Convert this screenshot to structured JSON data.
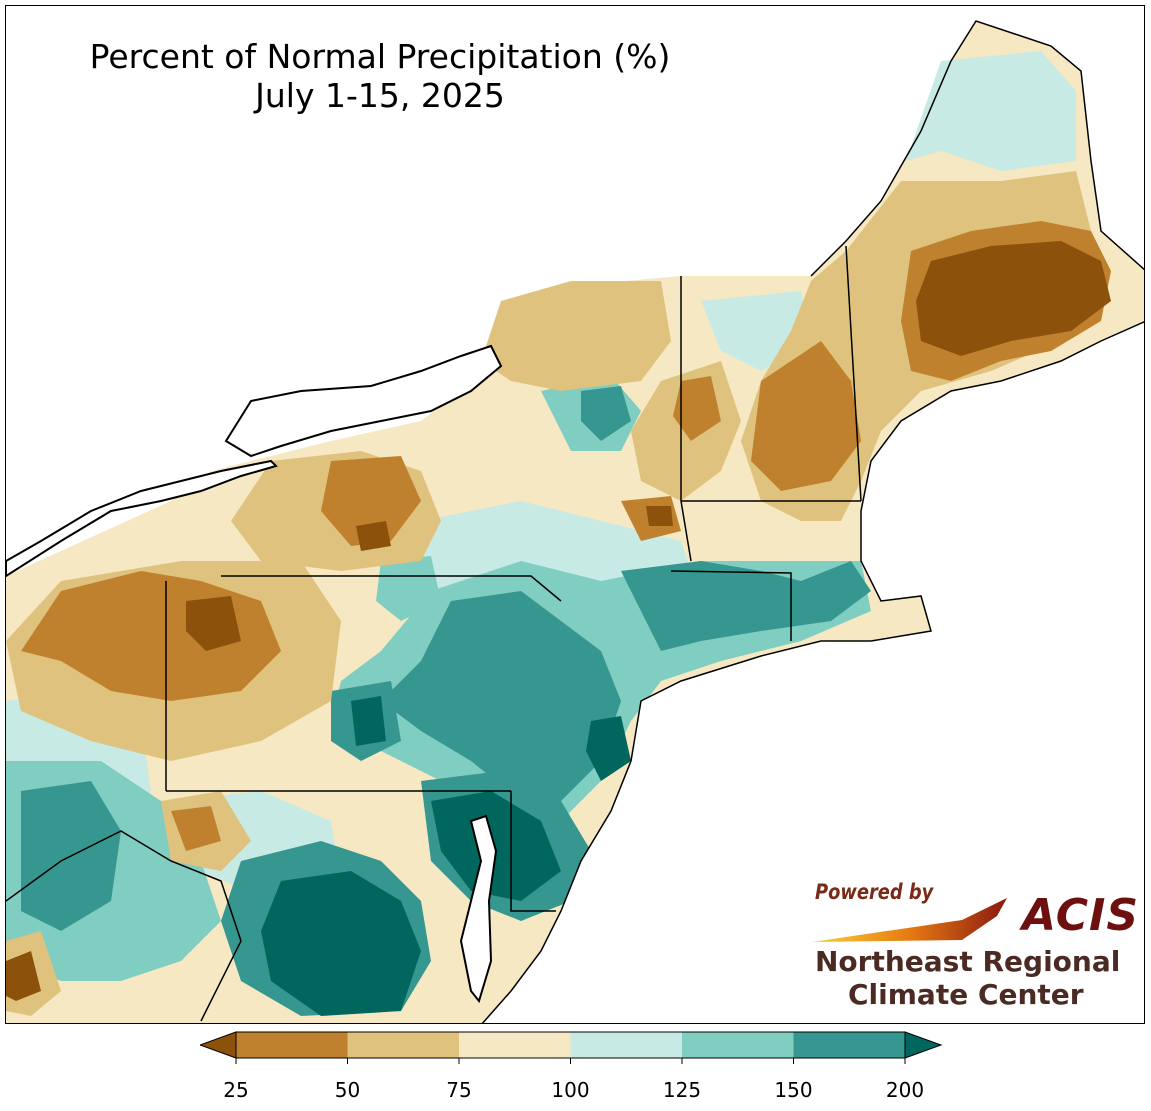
{
  "title": {
    "line1": "Percent of Normal Precipitation (%)",
    "line2": "July 1-15, 2025"
  },
  "credit": {
    "powered_by": "Powered by",
    "acis": "ACIS",
    "org_line1": "Northeast Regional",
    "org_line2": "Climate Center"
  },
  "legend": {
    "ticks": [
      "25",
      "50",
      "75",
      "100",
      "125",
      "150",
      "200"
    ],
    "bins": [
      {
        "range": "<25",
        "color": "#8c510a"
      },
      {
        "range": "25-50",
        "color": "#bf812d"
      },
      {
        "range": "50-75",
        "color": "#dfc27d"
      },
      {
        "range": "75-100",
        "color": "#f6e8c3"
      },
      {
        "range": "100-125",
        "color": "#c7eae5"
      },
      {
        "range": "125-150",
        "color": "#80cdc1"
      },
      {
        "range": "150-200",
        "color": "#35978f"
      },
      {
        "range": ">200",
        "color": "#01665e"
      }
    ]
  },
  "colors": {
    "background": "#ffffff",
    "water": "#ffffff",
    "boundary": "#000000",
    "county": "#9a9a9a"
  }
}
